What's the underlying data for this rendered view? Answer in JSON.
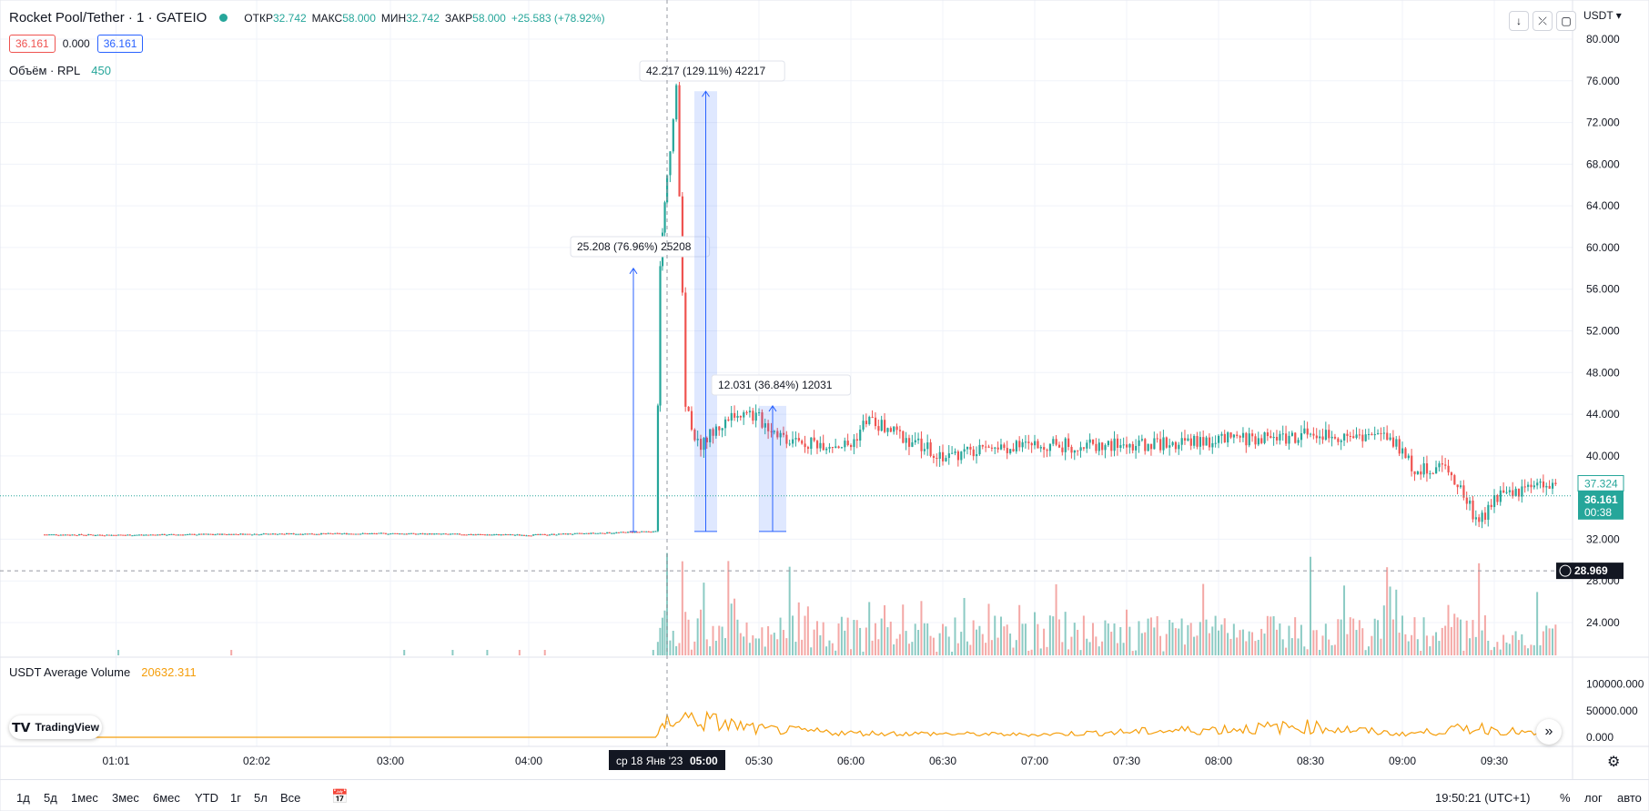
{
  "header": {
    "title": "Rocket Pool/Tether · 1 · GATEIO",
    "ohlc": [
      {
        "label": "ОТКР",
        "value": "32.742"
      },
      {
        "label": "МАКС",
        "value": "58.000"
      },
      {
        "label": "МИН",
        "value": "32.742"
      },
      {
        "label": "ЗАКР",
        "value": "58.000"
      }
    ],
    "change": "+25.583 (+78.92%)",
    "bid": "36.161",
    "spread": "0.000",
    "ask": "36.161",
    "volume_label": "Объём · RPL",
    "volume_value": "450",
    "avg_volume_label": "USDT Average Volume",
    "avg_volume_value": "20632.311",
    "currency": "USDT"
  },
  "toolbar_icons": [
    "arrow-down-icon",
    "collapse-icon",
    "maximize-icon"
  ],
  "price_axis": {
    "ticks": [
      "80.000",
      "76.000",
      "72.000",
      "68.000",
      "64.000",
      "60.000",
      "56.000",
      "52.000",
      "48.000",
      "44.000",
      "40.000",
      "32.000",
      "28.000",
      "24.000"
    ],
    "last_price": "37.324",
    "current_price": "36.161",
    "countdown": "00:38",
    "crosshair_price": "28.969"
  },
  "avg_axis": {
    "ticks": [
      "100000.000",
      "50000.000",
      "0.000"
    ]
  },
  "time_axis": {
    "ticks": [
      "01:01",
      "02:02",
      "03:00",
      "04:00",
      "05:30",
      "06:00",
      "06:30",
      "07:00",
      "07:30",
      "08:00",
      "08:30",
      "09:00",
      "09:30"
    ],
    "crosshair_label": "ср 18 Янв '23",
    "crosshair_time": "05:00"
  },
  "measurements": [
    {
      "text": "25.208 (76.96%) 25208"
    },
    {
      "text": "42.217 (129.11%) 42217"
    },
    {
      "text": "12.031 (36.84%) 12031"
    }
  ],
  "bottom": {
    "ranges": [
      "1д",
      "5д",
      "1мес",
      "3мес",
      "6мес",
      "YTD",
      "1г",
      "5л",
      "Все"
    ],
    "clock": "19:50:21 (UTC+1)",
    "percent": "%",
    "log": "лог",
    "auto": "авто"
  },
  "logo_text": "TradingView",
  "colors": {
    "up": "#26a69a",
    "down": "#ef5350",
    "avg_line": "#f59e0b",
    "measure": "#2962ff"
  },
  "chart_data": {
    "type": "candlestick",
    "title": "Rocket Pool/Tether · 1 · GATEIO",
    "ylim": [
      20,
      82
    ],
    "y_log": false,
    "grid": true,
    "legend_position": "top-left",
    "price_path": [
      {
        "t": "00:30",
        "p": 32.45
      },
      {
        "t": "01:01",
        "p": 32.4
      },
      {
        "t": "02:02",
        "p": 32.5
      },
      {
        "t": "03:00",
        "p": 32.55
      },
      {
        "t": "04:00",
        "p": 32.4
      },
      {
        "t": "04:55",
        "p": 32.742
      },
      {
        "t": "04:57",
        "p": 58.0
      },
      {
        "t": "05:03",
        "p": 75.0
      },
      {
        "t": "05:06",
        "p": 45.0
      },
      {
        "t": "05:10",
        "p": 41.0
      },
      {
        "t": "05:20",
        "p": 43.5
      },
      {
        "t": "05:25",
        "p": 44.5
      },
      {
        "t": "05:40",
        "p": 41.5
      },
      {
        "t": "06:00",
        "p": 41.0
      },
      {
        "t": "06:05",
        "p": 43.5
      },
      {
        "t": "06:30",
        "p": 40.0
      },
      {
        "t": "07:00",
        "p": 41.0
      },
      {
        "t": "07:30",
        "p": 41.0
      },
      {
        "t": "08:00",
        "p": 41.5
      },
      {
        "t": "08:30",
        "p": 42.0
      },
      {
        "t": "08:55",
        "p": 42.0
      },
      {
        "t": "09:05",
        "p": 38.5
      },
      {
        "t": "09:15",
        "p": 39.0
      },
      {
        "t": "09:25",
        "p": 33.5
      },
      {
        "t": "09:30",
        "p": 36.0
      },
      {
        "t": "09:50",
        "p": 37.3
      }
    ],
    "volume_spikes": [
      {
        "t": "05:00",
        "side": "down"
      },
      {
        "t": "05:05",
        "side": "down"
      },
      {
        "t": "05:20",
        "side": "up"
      },
      {
        "t": "05:40",
        "side": "up"
      },
      {
        "t": "08:30",
        "side": "down"
      },
      {
        "t": "08:55",
        "side": "down"
      },
      {
        "t": "09:25",
        "side": "down"
      }
    ],
    "avg_volume_ylim": [
      0,
      120000
    ],
    "avg_volume_path": [
      {
        "t": "00:30",
        "v": 0
      },
      {
        "t": "04:55",
        "v": 0
      },
      {
        "t": "05:02",
        "v": 40000
      },
      {
        "t": "05:30",
        "v": 15000
      },
      {
        "t": "06:00",
        "v": 8000
      },
      {
        "t": "07:00",
        "v": 5000
      },
      {
        "t": "08:30",
        "v": 20000
      },
      {
        "t": "09:00",
        "v": 6000
      },
      {
        "t": "09:25",
        "v": 18000
      },
      {
        "t": "09:50",
        "v": 2000
      }
    ]
  }
}
